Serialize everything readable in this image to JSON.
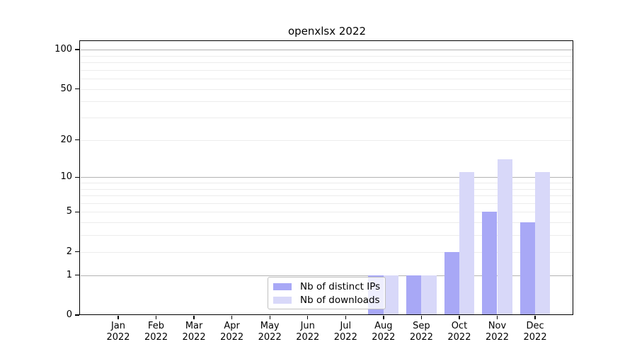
{
  "title": "openxlsx 2022",
  "chart_data": {
    "type": "bar",
    "title": "openxlsx 2022",
    "categories": [
      "Jan",
      "Feb",
      "Mar",
      "Apr",
      "May",
      "Jun",
      "Jul",
      "Aug",
      "Sep",
      "Oct",
      "Nov",
      "Dec"
    ],
    "year_label": "2022",
    "series": [
      {
        "name": "Nb of distinct IPs",
        "color": "#a8a8f6",
        "values": [
          0,
          0,
          0,
          0,
          0,
          0,
          0,
          1,
          1,
          2,
          5,
          4
        ]
      },
      {
        "name": "Nb of downloads",
        "color": "#d8d8f9",
        "values": [
          0,
          0,
          0,
          0,
          0,
          0,
          0,
          1,
          1,
          11,
          14,
          11
        ]
      }
    ],
    "yscale": "log10(1+x)",
    "ylim": [
      0,
      100
    ],
    "yticks": [
      0,
      1,
      2,
      5,
      10,
      20,
      50,
      100
    ],
    "grid": true,
    "grid_major": [
      1,
      10,
      100
    ],
    "grid_minor": [
      2,
      3,
      4,
      5,
      6,
      7,
      8,
      9,
      20,
      30,
      40,
      50,
      60,
      70,
      80,
      90
    ],
    "legend": {
      "entries": [
        "Nb of distinct IPs",
        "Nb of downloads"
      ],
      "position": "lower-center"
    }
  }
}
